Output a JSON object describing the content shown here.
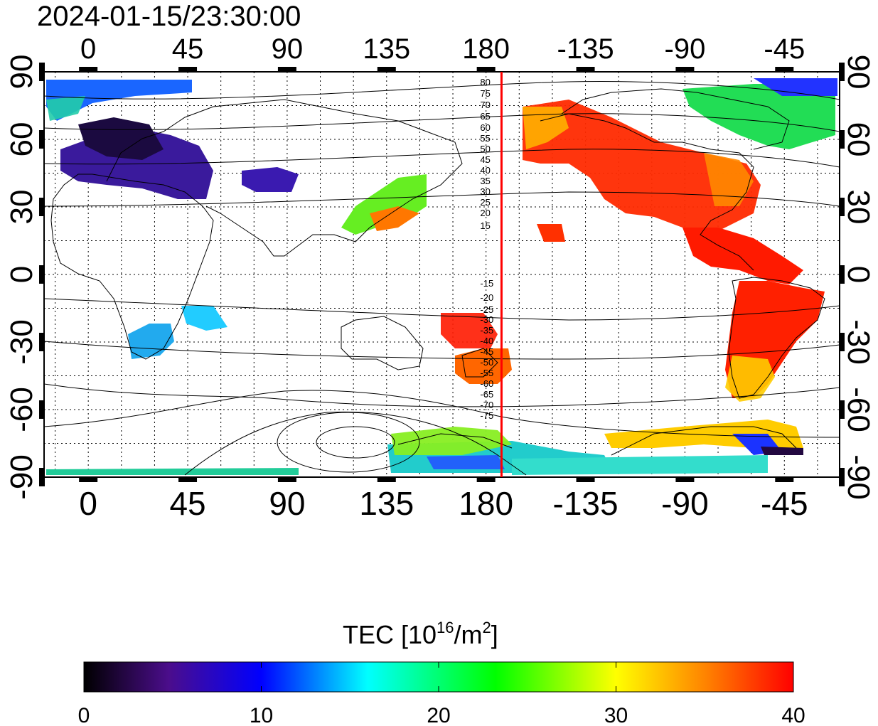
{
  "title": "2024-01-15/23:30:00",
  "lon_ticks": [
    "0",
    "45",
    "90",
    "135",
    "180",
    "-135",
    "-90",
    "-45"
  ],
  "lat_ticks": [
    "90",
    "60",
    "30",
    "0",
    "-30",
    "-60",
    "-90"
  ],
  "mlat_contour_labels": [
    "80",
    "75",
    "70",
    "65",
    "60",
    "55",
    "50",
    "45",
    "40",
    "35",
    "30",
    "25",
    "20",
    "15",
    "-15",
    "-20",
    "-25",
    "-30",
    "-35",
    "-40",
    "-45",
    "-50",
    "-55",
    "-60",
    "-65",
    "-70",
    "-75"
  ],
  "colorbar": {
    "title_main": "TEC  [10",
    "title_sup1": "16",
    "title_mid": "/m",
    "title_sup2": "2",
    "title_end": "]",
    "ticks": [
      "0",
      "10",
      "20",
      "30",
      "40"
    ],
    "range": [
      0,
      40
    ]
  },
  "colors": {
    "terminator_line": "#ff0000",
    "coast": "#000000"
  },
  "map_data": {
    "projection": "equirectangular",
    "lon_range": [
      -20,
      340
    ],
    "lat_range": [
      -90,
      90
    ],
    "terminator_lon": 187
  }
}
